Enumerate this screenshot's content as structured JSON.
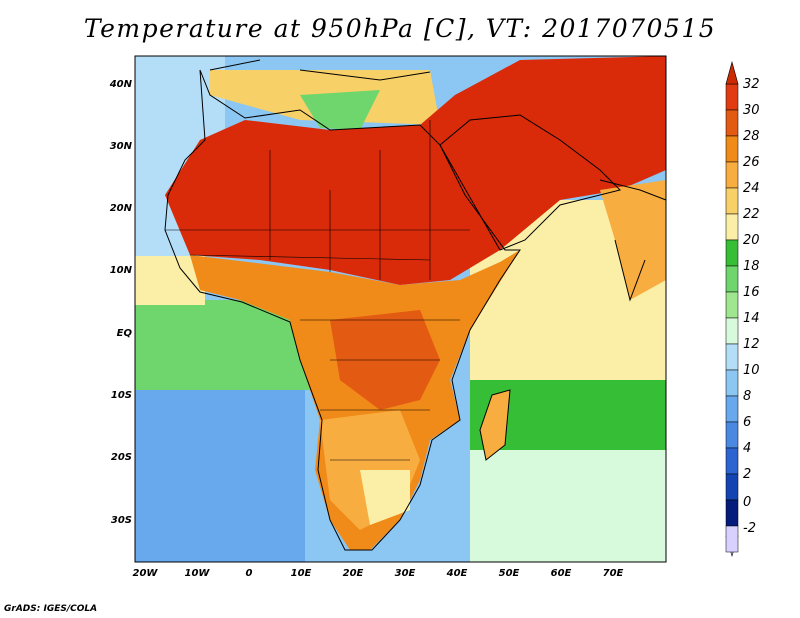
{
  "title": "Temperature at 950hPa [C], VT: 2017070515",
  "credit": "GrADS: IGES/COLA",
  "map": {
    "lat_labels": [
      "40N",
      "30N",
      "20N",
      "10N",
      "EQ",
      "10S",
      "20S",
      "30S"
    ],
    "lon_labels": [
      "20W",
      "10W",
      "0",
      "10E",
      "20E",
      "30E",
      "40E",
      "50E",
      "60E",
      "70E"
    ]
  },
  "colorbar": {
    "labels": [
      "32",
      "30",
      "28",
      "26",
      "24",
      "22",
      "20",
      "18",
      "16",
      "14",
      "12",
      "10",
      "8",
      "6",
      "4",
      "2",
      "0",
      "-2"
    ],
    "colors": [
      "#e13b12",
      "#e35a12",
      "#f08a18",
      "#f8ad40",
      "#f8d068",
      "#fbeea6",
      "#36bf36",
      "#6ed66c",
      "#9fe68e",
      "#d8fadc",
      "#b4def8",
      "#8cc6f2",
      "#68a8ec",
      "#4a88e2",
      "#2c64d2",
      "#1444b2",
      "#061c7c",
      "#d8d0ff"
    ],
    "top_arrow_color": "#cc2a00"
  },
  "colors": {
    "hot": "#d92a0a",
    "warm": "#f08a18",
    "sea_cool": "#8cc6f2",
    "sea_warm": "#fbeea6",
    "border": "#000000"
  }
}
